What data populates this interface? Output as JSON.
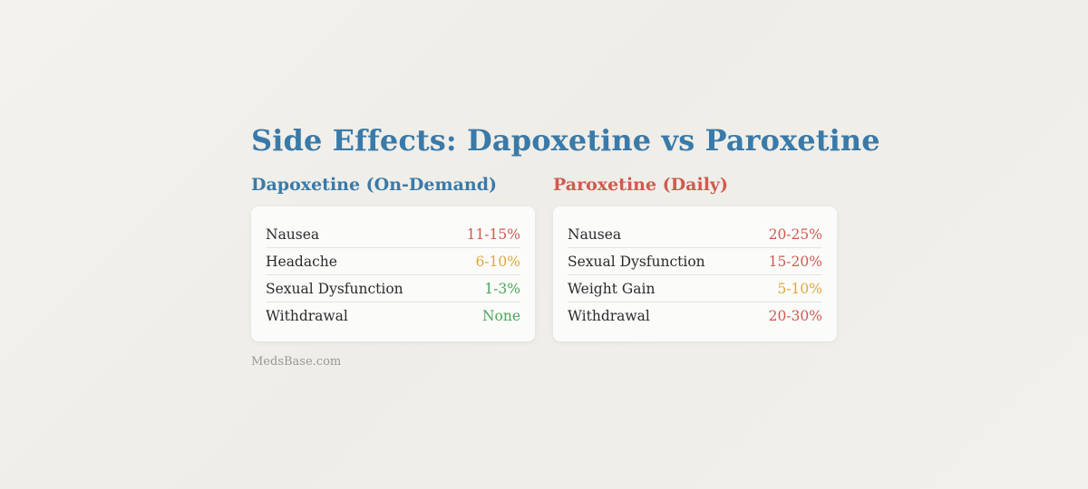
{
  "title": "Side Effects: Dapoxetine vs Paroxetine",
  "source": "MedsBase.com",
  "colors": {
    "title": "#3a7aa8",
    "high": "#cf5a4f",
    "medium": "#e0a93a",
    "low": "#4aa65a"
  },
  "columns": [
    {
      "heading": "Dapoxetine (On-Demand)",
      "heading_color": "#3a7aa8",
      "rows": [
        {
          "label": "Nausea",
          "value": "11-15%",
          "color": "#cf5a4f"
        },
        {
          "label": "Headache",
          "value": "6-10%",
          "color": "#e0a93a"
        },
        {
          "label": "Sexual Dysfunction",
          "value": "1-3%",
          "color": "#4aa65a"
        },
        {
          "label": "Withdrawal",
          "value": "None",
          "color": "#4aa65a"
        }
      ]
    },
    {
      "heading": "Paroxetine (Daily)",
      "heading_color": "#cf5a4f",
      "rows": [
        {
          "label": "Nausea",
          "value": "20-25%",
          "color": "#cf5a4f"
        },
        {
          "label": "Sexual Dysfunction",
          "value": "15-20%",
          "color": "#cf5a4f"
        },
        {
          "label": "Weight Gain",
          "value": "5-10%",
          "color": "#e0a93a"
        },
        {
          "label": "Withdrawal",
          "value": "20-30%",
          "color": "#cf5a4f"
        }
      ]
    }
  ]
}
